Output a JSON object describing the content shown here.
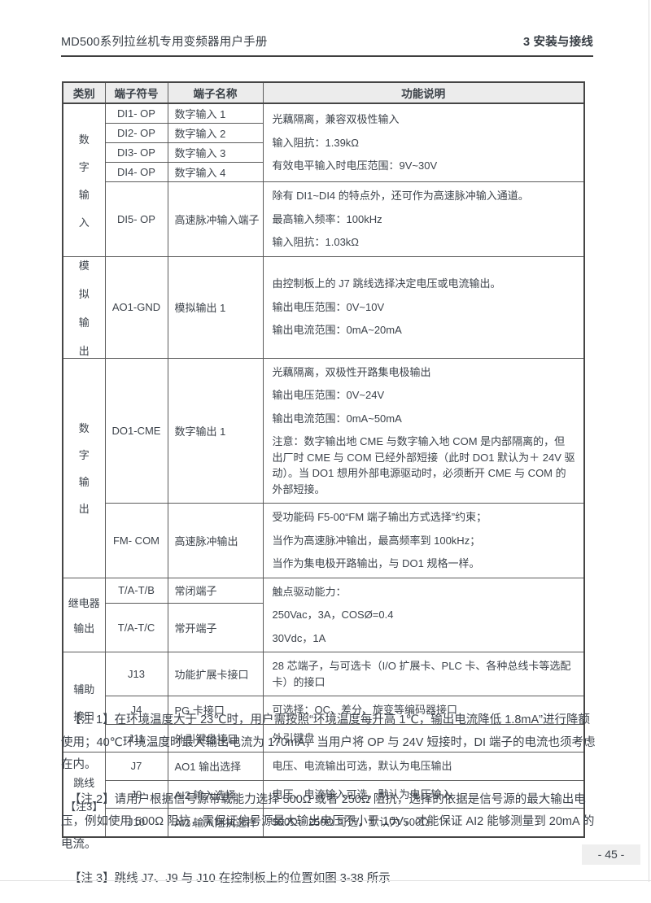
{
  "header": {
    "title": "MD500系列拉丝机专用变频器用户手册",
    "chapter": "3 安装与接线"
  },
  "table": {
    "headers": [
      "类别",
      "端子符号",
      "端子名称",
      "功能说明"
    ],
    "sections": [
      {
        "category": [
          "数",
          "字",
          "输",
          "入"
        ],
        "rows": [
          {
            "symbol": "DI1- OP",
            "name": "数字输入 1"
          },
          {
            "symbol": "DI2- OP",
            "name": "数字输入 2"
          },
          {
            "symbol": "DI3- OP",
            "name": "数字输入 3"
          },
          {
            "symbol": "DI4- OP",
            "name": "数字输入 4"
          },
          {
            "symbol": "DI5- OP",
            "name": "高速脉冲输入端子"
          }
        ],
        "funcs": [
          {
            "lines": [
              "光藕隔离，兼容双极性输入",
              "输入阻抗：1.39kΩ",
              "有效电平输入时电压范围：9V~30V"
            ]
          },
          {
            "lines": [
              "除有 DI1~DI4 的特点外，还可作为高速脉冲输入通道。",
              "最高输入频率：100kHz",
              "输入阻抗：1.03kΩ"
            ]
          }
        ]
      },
      {
        "category": [
          "模",
          "拟",
          "输",
          "出"
        ],
        "rows": [
          {
            "symbol": "AO1-GND",
            "name": "模拟输出 1"
          }
        ],
        "funcs": [
          {
            "lines": [
              "由控制板上的 J7 跳线选择决定电压或电流输出。",
              "输出电压范围：0V~10V",
              "输出电流范围：0mA~20mA"
            ]
          }
        ]
      },
      {
        "category": [
          "数",
          "字",
          "输",
          "出"
        ],
        "rows": [
          {
            "symbol": "DO1-CME",
            "name": "数字输出 1"
          },
          {
            "symbol": "FM- COM",
            "name": "高速脉冲输出"
          }
        ],
        "funcs": [
          {
            "lines": [
              "光藕隔离，双极性开路集电极输出",
              "输出电压范围：0V~24V",
              "输出电流范围：0mA~50mA",
              "注意：数字输出地 CME 与数字输入地 COM 是内部隔离的，但出厂时 CME 与 COM 已经外部短接（此时 DO1 默认为＋ 24V 驱动）。当 DO1 想用外部电源驱动时，必须断开 CME 与 COM 的外部短接。"
            ]
          },
          {
            "lines": [
              "受功能码 F5-00“FM 端子输出方式选择”约束；",
              "当作为高速脉冲输出，最高频率到 100kHz；",
              "当作为集电极开路输出，与 DO1 规格一样。"
            ]
          }
        ]
      },
      {
        "category": [
          "继电器",
          "输出"
        ],
        "rows": [
          {
            "symbol": "T/A-T/B",
            "name": "常闭端子"
          },
          {
            "symbol": "T/A-T/C",
            "name": "常开端子"
          }
        ],
        "funcs": [
          {
            "lines": [
              "触点驱动能力：",
              "250Vac，3A，COSØ=0.4",
              "30Vdc，1A"
            ]
          }
        ]
      },
      {
        "category": [
          "辅助",
          "接口"
        ],
        "rows": [
          {
            "symbol": "J13",
            "name": "功能扩展卡接口"
          },
          {
            "symbol": "J4",
            "name": "PG 卡接口"
          },
          {
            "symbol": "J11",
            "name": "外引键盘接口"
          }
        ],
        "funcs": [
          {
            "lines": [
              "28 芯端子，与可选卡（I/O 扩展卡、PLC 卡、各种总线卡等选配卡）的接口"
            ]
          },
          {
            "lines": [
              "可选择：OC、差分、旋变等编码器接口"
            ]
          },
          {
            "lines": [
              "外引键盘"
            ]
          }
        ]
      },
      {
        "category": [
          "跳线",
          "【注3】"
        ],
        "rows": [
          {
            "symbol": "J7",
            "name": "AO1 输出选择"
          },
          {
            "symbol": "J9",
            "name": "AI2 输入选择"
          },
          {
            "symbol": "J10",
            "name": "AI2 输入阻抗选择"
          }
        ],
        "funcs": [
          {
            "lines": [
              "电压、电流输出可选，默认为电压输出"
            ]
          },
          {
            "lines": [
              "电压、电流输入可选，默认为电压输入"
            ]
          },
          {
            "lines": [
              "500Ω、250Ω 可选，默认为 500Ω"
            ]
          }
        ]
      }
    ]
  },
  "notes": [
    "【注 1】在环境温度大于 23℃时，用户需按照“环境温度每升高 1℃，输出电流降低 1.8mA”进行降额使用；40℃环境温度时最大输出电流为 170mA，当用户将 OP 与 24V 短接时，DI 端子的电流也须考虑在内。",
    "【注 2】请用户根据信号源带载能力选择 500Ω 或者 250Ω 阻抗，选择的依据是信号源的最大输出电压，例如使用 500Ω 阻抗，需保证信号源最大输出电压不小于 10V，才能保证 AI2 能够测量到 20mA 的电流。",
    "【注 3】跳线 J7、J9 与 J10 在控制板上的位置如图 3-38 所示"
  ],
  "footer": {
    "page": "- 45 -"
  }
}
